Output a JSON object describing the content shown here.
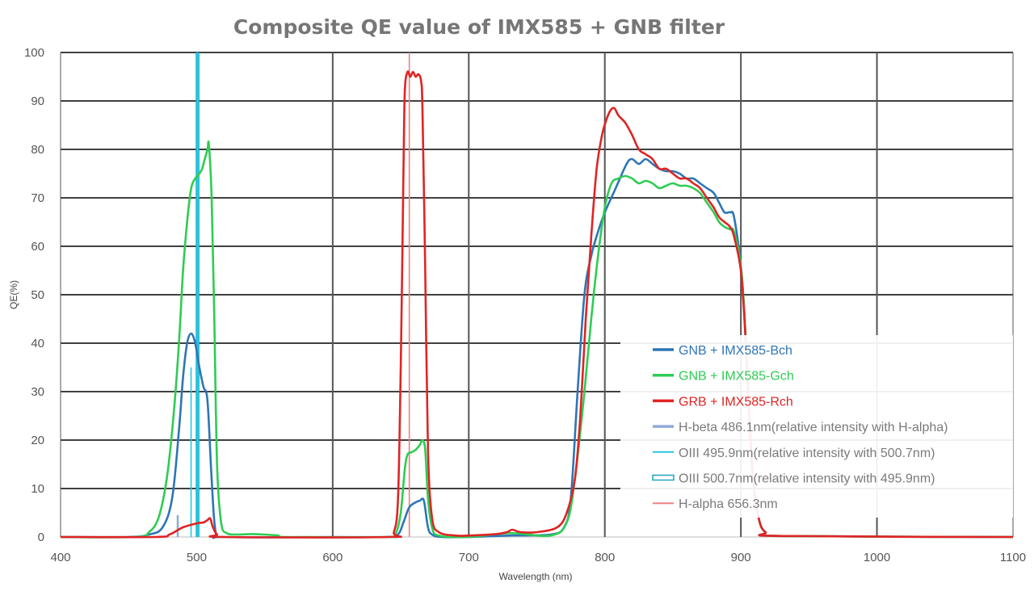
{
  "chart_data": {
    "type": "line",
    "title": "Composite QE value of IMX585 + GNB filter",
    "xlabel": "Wavelength (nm)",
    "ylabel": "QE(%)",
    "xlim": [
      400,
      1100
    ],
    "ylim": [
      0,
      100
    ],
    "xticks": [
      "400",
      "500",
      "600",
      "700",
      "800",
      "900",
      "1000",
      "1100"
    ],
    "yticks": [
      "0",
      "10",
      "20",
      "30",
      "40",
      "50",
      "60",
      "70",
      "80",
      "90",
      "100"
    ],
    "grid": true,
    "legend_position": "right",
    "series": [
      {
        "name": "GNB + IMX585-Bch",
        "color": "#2e75b6",
        "points": [
          [
            400,
            0
          ],
          [
            450,
            0
          ],
          [
            465,
            0.5
          ],
          [
            475,
            2
          ],
          [
            482,
            8
          ],
          [
            487,
            22
          ],
          [
            490,
            33
          ],
          [
            493,
            40
          ],
          [
            496,
            42
          ],
          [
            499,
            40
          ],
          [
            502,
            35
          ],
          [
            505,
            31
          ],
          [
            508,
            28
          ],
          [
            511,
            12
          ],
          [
            514,
            1
          ],
          [
            520,
            0
          ],
          [
            600,
            0
          ],
          [
            640,
            0
          ],
          [
            648,
            0.5
          ],
          [
            652,
            3
          ],
          [
            656,
            6
          ],
          [
            660,
            7
          ],
          [
            664,
            7.5
          ],
          [
            667,
            7.5
          ],
          [
            670,
            2
          ],
          [
            673,
            0.5
          ],
          [
            680,
            0
          ],
          [
            700,
            0
          ],
          [
            730,
            0.3
          ],
          [
            760,
            0.5
          ],
          [
            770,
            2
          ],
          [
            775,
            8
          ],
          [
            780,
            30
          ],
          [
            785,
            50
          ],
          [
            790,
            58
          ],
          [
            795,
            63
          ],
          [
            800,
            67
          ],
          [
            808,
            72
          ],
          [
            816,
            77
          ],
          [
            820,
            78
          ],
          [
            825,
            77
          ],
          [
            830,
            78
          ],
          [
            835,
            77
          ],
          [
            840,
            76
          ],
          [
            845,
            75.5
          ],
          [
            850,
            75.5
          ],
          [
            855,
            75
          ],
          [
            860,
            74
          ],
          [
            865,
            74
          ],
          [
            870,
            73
          ],
          [
            875,
            72
          ],
          [
            880,
            71
          ],
          [
            884,
            69
          ],
          [
            888,
            67
          ],
          [
            892,
            67
          ],
          [
            895,
            66
          ],
          [
            900,
            56
          ],
          [
            903,
            44
          ],
          [
            906,
            26
          ],
          [
            909,
            12
          ],
          [
            913,
            4
          ],
          [
            918,
            1
          ],
          [
            930,
            0.2
          ],
          [
            1100,
            0
          ]
        ]
      },
      {
        "name": "GNB + IMX585-Gch",
        "color": "#2ecc54",
        "points": [
          [
            400,
            0
          ],
          [
            455,
            0
          ],
          [
            465,
            1
          ],
          [
            472,
            4
          ],
          [
            478,
            12
          ],
          [
            483,
            25
          ],
          [
            487,
            40
          ],
          [
            490,
            55
          ],
          [
            493,
            65
          ],
          [
            496,
            72
          ],
          [
            499,
            74
          ],
          [
            502,
            75
          ],
          [
            504,
            76
          ],
          [
            506,
            78
          ],
          [
            508,
            80
          ],
          [
            509,
            81
          ],
          [
            511,
            70
          ],
          [
            513,
            45
          ],
          [
            515,
            15
          ],
          [
            518,
            3
          ],
          [
            522,
            0.8
          ],
          [
            530,
            0.5
          ],
          [
            540,
            0.6
          ],
          [
            550,
            0.5
          ],
          [
            560,
            0.3
          ],
          [
            565,
            0
          ],
          [
            640,
            0
          ],
          [
            646,
            0.5
          ],
          [
            650,
            5
          ],
          [
            653,
            14
          ],
          [
            655,
            17
          ],
          [
            658,
            17.5
          ],
          [
            661,
            18
          ],
          [
            664,
            19
          ],
          [
            666,
            20
          ],
          [
            668,
            18
          ],
          [
            670,
            8
          ],
          [
            673,
            2
          ],
          [
            678,
            0.3
          ],
          [
            700,
            0
          ],
          [
            730,
            0.8
          ],
          [
            760,
            0.3
          ],
          [
            772,
            3
          ],
          [
            778,
            12
          ],
          [
            785,
            30
          ],
          [
            790,
            45
          ],
          [
            795,
            58
          ],
          [
            800,
            68
          ],
          [
            805,
            73
          ],
          [
            810,
            74
          ],
          [
            815,
            74.5
          ],
          [
            820,
            74
          ],
          [
            825,
            73
          ],
          [
            830,
            73.5
          ],
          [
            835,
            73
          ],
          [
            840,
            72
          ],
          [
            845,
            72.5
          ],
          [
            850,
            73
          ],
          [
            855,
            72.5
          ],
          [
            860,
            72.5
          ],
          [
            865,
            72
          ],
          [
            870,
            71
          ],
          [
            875,
            69
          ],
          [
            880,
            67
          ],
          [
            884,
            65
          ],
          [
            888,
            64
          ],
          [
            892,
            63.5
          ],
          [
            895,
            63
          ],
          [
            900,
            56
          ],
          [
            903,
            44
          ],
          [
            906,
            26
          ],
          [
            909,
            12
          ],
          [
            913,
            4
          ],
          [
            918,
            1
          ],
          [
            930,
            0.2
          ],
          [
            1100,
            0
          ]
        ]
      },
      {
        "name": "GRB + IMX585-Rch",
        "color": "#e02424",
        "points": [
          [
            400,
            0
          ],
          [
            470,
            0
          ],
          [
            480,
            0.5
          ],
          [
            490,
            2
          ],
          [
            500,
            2.8
          ],
          [
            505,
            3
          ],
          [
            508,
            3.5
          ],
          [
            510,
            3.8
          ],
          [
            512,
            2
          ],
          [
            515,
            0.5
          ],
          [
            520,
            0
          ],
          [
            640,
            0
          ],
          [
            645,
            1
          ],
          [
            648,
            8
          ],
          [
            650,
            35
          ],
          [
            652,
            75
          ],
          [
            653,
            92
          ],
          [
            655,
            96
          ],
          [
            657,
            95
          ],
          [
            659,
            96
          ],
          [
            661,
            95
          ],
          [
            663,
            95.5
          ],
          [
            665,
            94
          ],
          [
            666,
            88
          ],
          [
            668,
            55
          ],
          [
            670,
            18
          ],
          [
            673,
            4
          ],
          [
            678,
            1
          ],
          [
            690,
            0.3
          ],
          [
            700,
            0.3
          ],
          [
            720,
            0.6
          ],
          [
            728,
            1
          ],
          [
            732,
            1.5
          ],
          [
            738,
            1
          ],
          [
            750,
            1
          ],
          [
            765,
            2
          ],
          [
            772,
            5
          ],
          [
            778,
            12
          ],
          [
            782,
            25
          ],
          [
            786,
            45
          ],
          [
            790,
            62
          ],
          [
            794,
            76
          ],
          [
            798,
            83
          ],
          [
            801,
            86
          ],
          [
            804,
            88
          ],
          [
            807,
            88.5
          ],
          [
            810,
            87
          ],
          [
            815,
            85.5
          ],
          [
            820,
            83
          ],
          [
            825,
            80
          ],
          [
            830,
            79
          ],
          [
            835,
            78
          ],
          [
            840,
            76
          ],
          [
            845,
            76
          ],
          [
            850,
            75
          ],
          [
            855,
            74
          ],
          [
            860,
            74
          ],
          [
            865,
            73
          ],
          [
            870,
            72
          ],
          [
            875,
            70
          ],
          [
            880,
            68
          ],
          [
            884,
            66
          ],
          [
            888,
            65
          ],
          [
            892,
            64
          ],
          [
            895,
            62
          ],
          [
            900,
            55
          ],
          [
            903,
            43
          ],
          [
            906,
            26
          ],
          [
            909,
            12
          ],
          [
            913,
            4
          ],
          [
            918,
            1
          ],
          [
            930,
            0.2
          ],
          [
            1100,
            0
          ]
        ]
      }
    ],
    "emission_lines": [
      {
        "name": "H-beta 486.1nm(relative intensity with H-alpha)",
        "x": 486.1,
        "value": 4.5,
        "color": "#8fa9d9"
      },
      {
        "name": "OIII 495.9nm(relative intensity with 500.7nm)",
        "x": 495.9,
        "value": 35,
        "color": "#22c8e0"
      },
      {
        "name": "OIII 500.7nm(relative intensity with 495.9nm)",
        "x": 500.7,
        "value": 100,
        "color": "#22c8e0"
      },
      {
        "name": "H-alpha 656.3nm",
        "x": 656.3,
        "value": 100,
        "color": "#f08080"
      }
    ]
  }
}
